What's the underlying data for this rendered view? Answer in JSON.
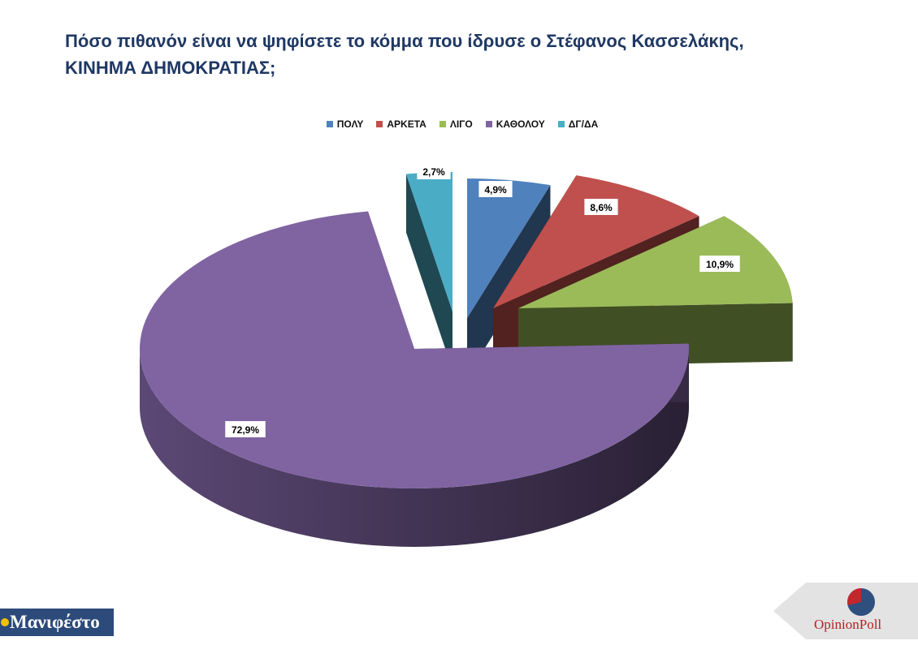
{
  "title": {
    "line1": "Πόσο πιθανόν είναι να ψηφίσετε το κόμμα που ίδρυσε ο Στέφανος Κασσελάκης,",
    "line2": "ΚΙΝΗΜΑ ΔΗΜΟΚΡΑΤΙΑΣ;"
  },
  "chart_data": {
    "type": "pie",
    "categories": [
      "ΠΟΛΥ",
      "ΑΡΚΕΤΑ",
      "ΛΙΓΟ",
      "ΚΑΘΟΛΟΥ",
      "ΔΓ/ΔΑ"
    ],
    "values": [
      4.9,
      8.6,
      10.9,
      72.9,
      2.7
    ],
    "labels": [
      "4,9%",
      "8,6%",
      "10,9%",
      "72,9%",
      "2,7%"
    ],
    "colors": [
      "#4f81bd",
      "#c0504d",
      "#9bbb59",
      "#8064a2",
      "#4bacc6"
    ],
    "legend_position": "top",
    "style": "3d-exploded"
  },
  "logos": {
    "left": "Μανιφέστο",
    "right_word1": "Opinion",
    "right_word2": "Poll"
  }
}
